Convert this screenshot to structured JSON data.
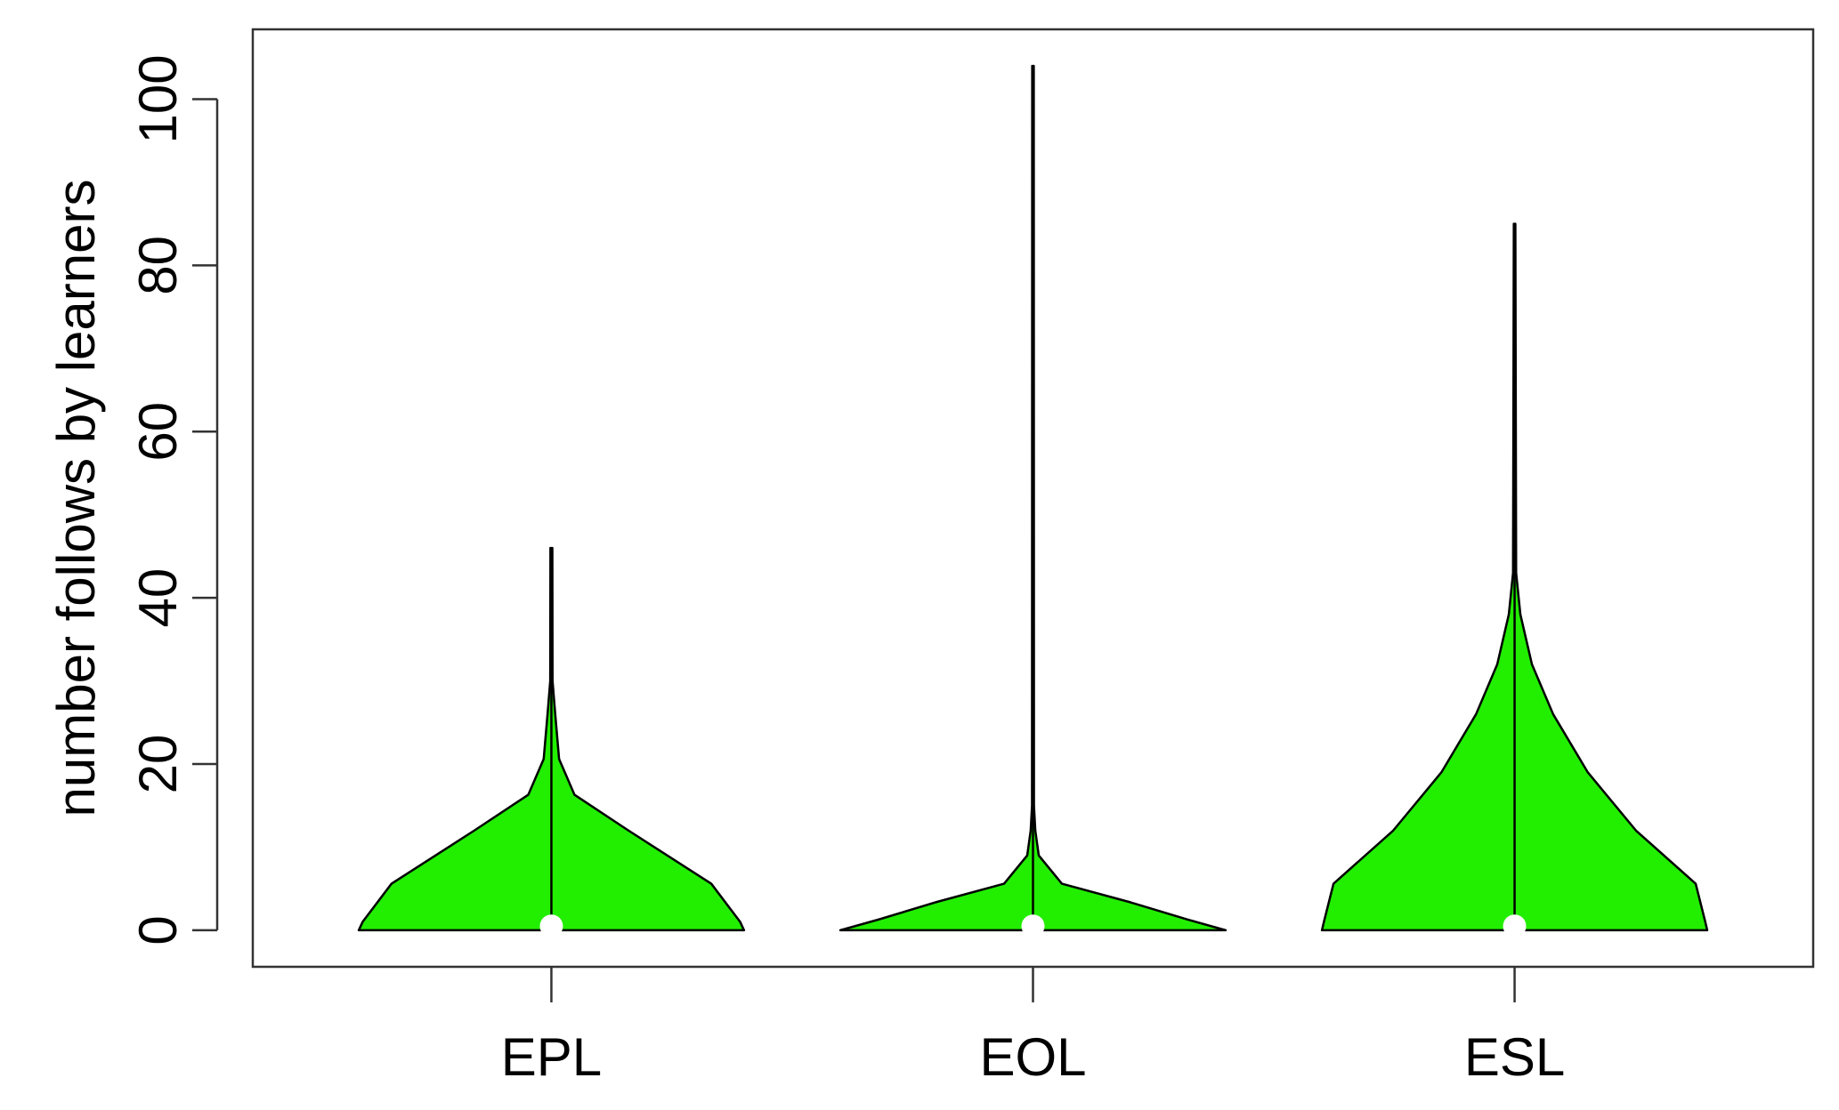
{
  "chart_data": {
    "type": "violin",
    "y_label": "number follows by learners",
    "categories": [
      "EPL",
      "EOL",
      "ESL"
    ],
    "color": "#22ee00",
    "ylim": [
      -4.4,
      108.4
    ],
    "yticks": [
      0,
      20,
      40,
      60,
      80,
      100
    ],
    "violins": [
      {
        "min": 0,
        "max": 46,
        "median": 0.5,
        "density_y": [
          0,
          1,
          5.6,
          12,
          16.3,
          20.6,
          26,
          30,
          46
        ],
        "density_width": [
          1.0,
          0.98,
          0.83,
          0.4,
          0.12,
          0.04,
          0.02,
          0.006,
          0.005
        ]
      },
      {
        "min": 0,
        "max": 104,
        "median": 0.5,
        "density_y": [
          0,
          1.3,
          3.4,
          5.6,
          9,
          12,
          15,
          104
        ],
        "density_width": [
          1.0,
          0.8,
          0.5,
          0.15,
          0.03,
          0.012,
          0.005,
          0.004
        ]
      },
      {
        "min": 0,
        "max": 85,
        "median": 0.5,
        "density_y": [
          0,
          1,
          5.6,
          12,
          19,
          26,
          32,
          38,
          43,
          85
        ],
        "density_width": [
          1.0,
          0.99,
          0.94,
          0.63,
          0.38,
          0.2,
          0.09,
          0.03,
          0.008,
          0.004
        ]
      }
    ]
  }
}
